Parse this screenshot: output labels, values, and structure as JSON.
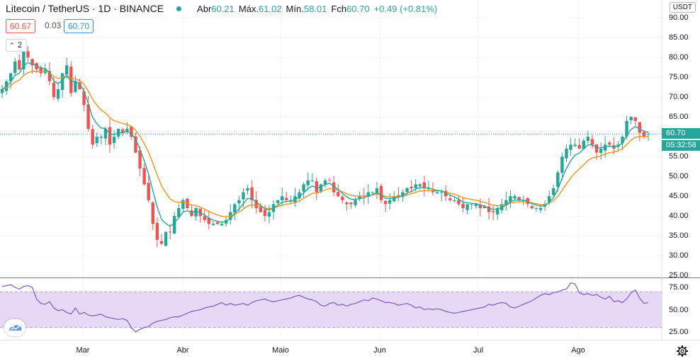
{
  "header": {
    "symbol": "Litecoin / TetherUS · 1D · BINANCE",
    "open_label": "Abr",
    "open": "60.21",
    "high_label": "Máx.",
    "high": "61.02",
    "low_label": "Mín.",
    "low": "58.01",
    "close_label": "Fch",
    "close": "60.70",
    "change": "+0.49 (+0.81%)"
  },
  "quote": {
    "bid": "60.67",
    "spread": "0.03",
    "ask": "60.70"
  },
  "indicators_toggle": "2",
  "currency_badge": "USDT",
  "last_price_tag": "60.70",
  "countdown_tag": "05:32:58",
  "colors": {
    "up": "#26a69a",
    "down": "#ef5350",
    "ma_fast": "#26a69a",
    "ma_slow": "#f7931a",
    "rsi": "#7e57c2",
    "rsi_band": "#e6d9f5"
  },
  "chart_data": [
    {
      "type": "candlestick",
      "title": "Litecoin / TetherUS · 1D · BINANCE",
      "x_labels": [
        "Mar",
        "Abr",
        "Maio",
        "Jun",
        "Jul",
        "Ago"
      ],
      "ylim": [
        25,
        90
      ],
      "y_ticks": [
        "90.00",
        "85.00",
        "80.00",
        "75.00",
        "70.00",
        "65.00",
        "60.00",
        "55.00",
        "50.00",
        "45.00",
        "40.00",
        "35.00",
        "30.00",
        "25.00"
      ],
      "last_price": 60.7,
      "close_series": [
        72,
        74,
        76,
        79,
        77,
        82,
        80,
        78,
        77,
        76,
        77,
        74,
        70,
        72,
        76,
        78,
        71,
        74,
        72,
        68,
        62,
        58,
        60,
        60,
        62,
        58,
        60,
        62,
        61,
        62,
        60,
        56,
        52,
        48,
        44,
        38,
        34,
        33,
        36,
        36,
        40,
        42,
        44,
        42,
        40,
        42,
        40,
        39,
        38,
        38,
        38,
        38,
        39,
        41,
        43,
        44,
        46,
        47,
        44,
        42,
        41,
        40,
        41,
        43,
        44,
        45,
        44,
        44,
        45,
        46,
        48,
        49,
        49,
        46,
        48,
        49,
        49,
        46,
        45,
        44,
        43,
        43,
        44,
        45,
        45,
        46,
        46,
        47,
        44,
        43,
        44,
        45,
        45,
        46,
        47,
        47,
        48,
        48,
        47,
        47,
        46,
        46,
        46,
        45,
        44,
        44,
        43,
        42,
        43,
        43,
        43,
        42,
        42,
        41,
        41,
        42,
        43,
        44,
        45,
        45,
        44,
        44,
        43,
        42,
        42,
        42,
        43,
        45,
        47,
        51,
        55,
        57,
        58,
        58,
        57,
        59,
        60,
        58,
        56,
        57,
        58,
        58,
        57,
        58,
        60,
        64,
        65,
        64,
        61,
        60,
        60.7
      ],
      "ma_fast": "moving average (short)",
      "ma_slow": "moving average (long)"
    },
    {
      "type": "line",
      "ylim": [
        20,
        80
      ],
      "y_ticks": [
        "75.00",
        "50.00",
        "25.00"
      ],
      "band": [
        30,
        70
      ],
      "values": [
        76,
        77,
        78,
        75,
        73,
        76,
        77,
        75,
        62,
        57,
        56,
        59,
        52,
        49,
        50,
        47,
        45,
        52,
        45,
        47,
        44,
        43,
        44,
        45,
        42,
        41,
        40,
        39,
        40,
        38,
        30,
        25,
        28,
        30,
        31,
        35,
        37,
        38,
        39,
        41,
        42,
        42,
        44,
        46,
        48,
        49,
        50,
        52,
        53,
        54,
        56,
        58,
        55,
        57,
        55,
        56,
        57,
        55,
        58,
        60,
        61,
        62,
        60,
        59,
        60,
        61,
        62,
        63,
        65,
        66,
        64,
        62,
        61,
        59,
        55,
        54,
        57,
        58,
        55,
        56,
        54,
        56,
        57,
        59,
        61,
        60,
        63,
        62,
        60,
        58,
        58,
        57,
        55,
        56,
        57,
        55,
        52,
        53,
        50,
        51,
        50,
        51,
        50,
        48,
        47,
        46,
        47,
        48,
        49,
        50,
        51,
        52,
        53,
        56,
        55,
        57,
        58,
        57,
        53,
        52,
        54,
        56,
        58,
        60,
        63,
        66,
        68,
        67,
        69,
        70,
        72,
        73,
        80,
        79,
        69,
        67,
        68,
        66,
        67,
        64,
        62,
        65,
        59,
        60,
        58,
        62,
        69,
        72,
        63,
        57,
        58
      ]
    }
  ]
}
